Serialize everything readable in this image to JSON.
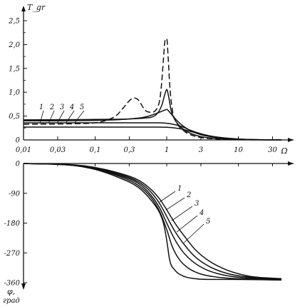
{
  "chart_data": [
    {
      "type": "line",
      "ylabel": "T_gr",
      "xlabel": "Ω",
      "x_scale": "log",
      "xlim": [
        0.01,
        40
      ],
      "ylim": [
        0,
        2.75
      ],
      "x_ticks": [
        "0,01",
        "0,03",
        "0,1",
        "0,3",
        "1",
        "3",
        "10",
        "30"
      ],
      "y_ticks": [
        "0",
        "0,5",
        "1,0",
        "1,5",
        "2,0",
        "2,5"
      ],
      "grid": false,
      "series": [
        {
          "name": "1",
          "style": "dashed",
          "x": [
            0.01,
            0.05,
            0.1,
            0.15,
            0.2,
            0.25,
            0.3,
            0.35,
            0.4,
            0.5,
            0.6,
            0.7,
            0.8,
            0.85,
            0.9,
            0.95,
            1.0,
            1.05,
            1.1,
            1.2,
            1.4,
            1.7,
            2,
            3,
            5,
            10,
            20,
            40
          ],
          "y": [
            0.33,
            0.34,
            0.36,
            0.42,
            0.52,
            0.68,
            0.82,
            0.88,
            0.84,
            0.62,
            0.58,
            0.62,
            0.85,
            1.2,
            1.7,
            2.1,
            2.12,
            1.7,
            1.15,
            0.62,
            0.34,
            0.2,
            0.13,
            0.05,
            0.02,
            0.005,
            0.002,
            0.001
          ]
        },
        {
          "name": "2",
          "x": [
            0.01,
            0.1,
            0.3,
            0.5,
            0.7,
            0.85,
            0.95,
            1.0,
            1.05,
            1.15,
            1.3,
            1.6,
            2,
            3,
            5,
            10,
            20,
            40
          ],
          "y": [
            0.42,
            0.43,
            0.44,
            0.46,
            0.52,
            0.72,
            0.98,
            1.06,
            0.95,
            0.62,
            0.42,
            0.26,
            0.16,
            0.07,
            0.03,
            0.008,
            0.002,
            0.001
          ]
        },
        {
          "name": "3",
          "x": [
            0.01,
            0.1,
            0.3,
            0.5,
            0.7,
            0.85,
            0.95,
            1.0,
            1.1,
            1.3,
            1.6,
            2,
            3,
            5,
            10,
            20,
            40
          ],
          "y": [
            0.4,
            0.41,
            0.44,
            0.48,
            0.55,
            0.6,
            0.63,
            0.64,
            0.58,
            0.45,
            0.32,
            0.22,
            0.11,
            0.05,
            0.015,
            0.004,
            0.001
          ]
        },
        {
          "name": "4",
          "x": [
            0.01,
            0.1,
            0.3,
            0.5,
            0.7,
            1.0,
            1.3,
            1.7,
            2,
            3,
            5,
            10,
            20,
            40
          ],
          "y": [
            0.36,
            0.36,
            0.36,
            0.36,
            0.36,
            0.35,
            0.32,
            0.27,
            0.22,
            0.13,
            0.06,
            0.02,
            0.005,
            0.001
          ]
        },
        {
          "name": "5",
          "x": [
            0.01,
            0.1,
            0.3,
            0.5,
            0.7,
            1.0,
            1.3,
            1.7,
            2,
            3,
            5,
            10,
            20,
            40
          ],
          "y": [
            0.27,
            0.27,
            0.27,
            0.27,
            0.27,
            0.265,
            0.25,
            0.22,
            0.19,
            0.12,
            0.06,
            0.02,
            0.006,
            0.001
          ]
        }
      ]
    },
    {
      "type": "line",
      "ylabel": "φ,",
      "ylabel2": "град",
      "x_scale": "log",
      "xlim": [
        0.01,
        40
      ],
      "ylim": [
        -360,
        0
      ],
      "y_ticks": [
        "0",
        "-90",
        "-180",
        "-270",
        "-360"
      ],
      "grid": false,
      "series": [
        {
          "name": "1",
          "x": [
            0.01,
            0.05,
            0.1,
            0.2,
            0.4,
            0.6,
            0.8,
            0.9,
            1.0,
            1.1,
            1.3,
            1.7,
            2.5,
            4,
            8,
            20,
            40
          ],
          "y": [
            0,
            -6,
            -18,
            -40,
            -72,
            -110,
            -150,
            -180,
            -232,
            -292,
            -322,
            -340,
            -348,
            -350,
            -350,
            -351,
            -352
          ]
        },
        {
          "name": "2",
          "x": [
            0.01,
            0.05,
            0.1,
            0.2,
            0.4,
            0.6,
            0.8,
            1.0,
            1.2,
            1.5,
            2,
            3,
            5,
            10,
            40
          ],
          "y": [
            0,
            -6,
            -17,
            -36,
            -66,
            -102,
            -146,
            -200,
            -252,
            -290,
            -316,
            -334,
            -343,
            -348,
            -350
          ]
        },
        {
          "name": "3",
          "x": [
            0.01,
            0.05,
            0.1,
            0.2,
            0.4,
            0.6,
            0.8,
            1.0,
            1.3,
            1.7,
            2.3,
            3.5,
            6,
            12,
            40
          ],
          "y": [
            0,
            -5,
            -15,
            -33,
            -60,
            -95,
            -135,
            -180,
            -230,
            -268,
            -296,
            -320,
            -336,
            -345,
            -349
          ]
        },
        {
          "name": "4",
          "x": [
            0.01,
            0.05,
            0.1,
            0.2,
            0.4,
            0.6,
            0.8,
            1.0,
            1.3,
            1.8,
            2.5,
            4,
            7,
            14,
            40
          ],
          "y": [
            0,
            -5,
            -14,
            -30,
            -55,
            -86,
            -122,
            -160,
            -205,
            -248,
            -282,
            -312,
            -332,
            -343,
            -348
          ]
        },
        {
          "name": "5",
          "x": [
            0.01,
            0.05,
            0.1,
            0.2,
            0.4,
            0.6,
            0.8,
            1.0,
            1.3,
            1.8,
            2.5,
            4,
            7,
            14,
            40
          ],
          "y": [
            0,
            -4,
            -12,
            -27,
            -50,
            -78,
            -108,
            -140,
            -180,
            -222,
            -260,
            -296,
            -322,
            -340,
            -348
          ]
        }
      ]
    }
  ]
}
